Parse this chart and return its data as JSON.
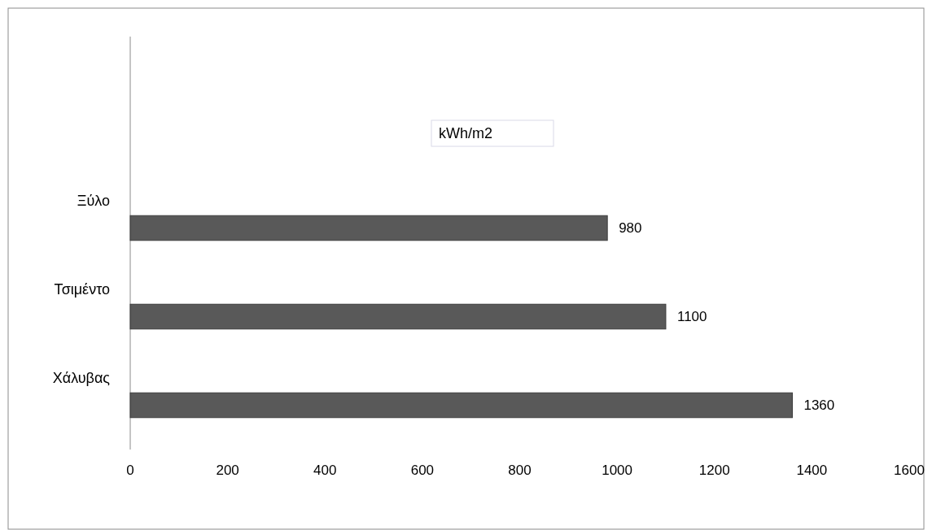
{
  "chart_data": {
    "type": "bar",
    "orientation": "horizontal",
    "title": "kWh/m2",
    "categories": [
      "Ξύλο",
      "Τσιμέντο",
      "Χάλυβας"
    ],
    "values": [
      980,
      1100,
      1360
    ],
    "color": "#595959",
    "xlim": [
      0,
      1600
    ],
    "xticks": [
      0,
      200,
      400,
      600,
      800,
      1000,
      1200,
      1400,
      1600
    ],
    "grid": false,
    "data_labels": true
  }
}
